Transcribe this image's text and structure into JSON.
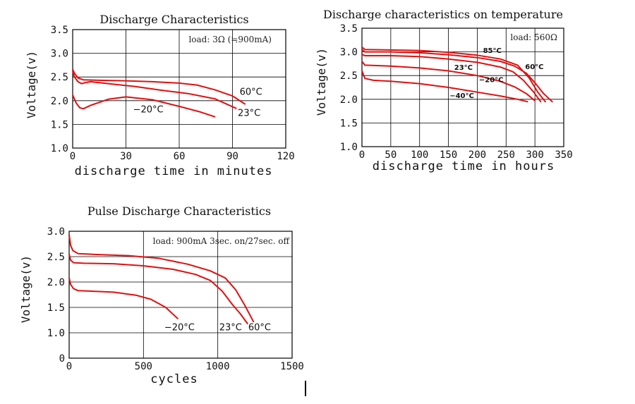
{
  "chart_data": [
    {
      "type": "line",
      "title": "Discharge Characteristics",
      "xlabel": "discharge time in minutes",
      "ylabel": "Voltage(v)",
      "xlim": [
        0,
        120
      ],
      "ylim": [
        1.0,
        3.5
      ],
      "xticks": [
        "0",
        "30",
        "60",
        "90",
        "120"
      ],
      "yticks": [
        "1.0",
        "1.5",
        "2.0",
        "2.5",
        "3.0",
        "3.5"
      ],
      "annotation": "load: 3Ω (≒900mA)",
      "grid": true,
      "series": [
        {
          "name": "60°C",
          "label_at": [
            94,
            2.12
          ],
          "points": [
            [
              0,
              2.66
            ],
            [
              1,
              2.58
            ],
            [
              3,
              2.48
            ],
            [
              6,
              2.44
            ],
            [
              15,
              2.43
            ],
            [
              30,
              2.42
            ],
            [
              45,
              2.4
            ],
            [
              60,
              2.37
            ],
            [
              70,
              2.33
            ],
            [
              80,
              2.23
            ],
            [
              90,
              2.1
            ],
            [
              97,
              1.93
            ]
          ]
        },
        {
          "name": "23°C",
          "label_at": [
            93,
            1.68
          ],
          "points": [
            [
              0,
              2.62
            ],
            [
              1,
              2.5
            ],
            [
              3,
              2.4
            ],
            [
              5,
              2.36
            ],
            [
              7,
              2.38
            ],
            [
              10,
              2.4
            ],
            [
              20,
              2.36
            ],
            [
              35,
              2.3
            ],
            [
              50,
              2.22
            ],
            [
              65,
              2.15
            ],
            [
              80,
              2.04
            ],
            [
              92,
              1.84
            ]
          ]
        },
        {
          "name": "−20°C",
          "label_at": [
            34,
            1.75
          ],
          "points": [
            [
              0,
              2.12
            ],
            [
              2,
              1.95
            ],
            [
              4,
              1.85
            ],
            [
              6,
              1.83
            ],
            [
              10,
              1.9
            ],
            [
              20,
              2.03
            ],
            [
              30,
              2.08
            ],
            [
              45,
              2.02
            ],
            [
              60,
              1.88
            ],
            [
              72,
              1.76
            ],
            [
              80,
              1.66
            ]
          ]
        }
      ]
    },
    {
      "type": "line",
      "title": "Discharge characteristics on temperature",
      "xlabel": "discharge time in hours",
      "ylabel": "Voltage(v)",
      "xlim": [
        0,
        350
      ],
      "ylim": [
        1.0,
        3.5
      ],
      "xticks": [
        "0",
        "50",
        "100",
        "150",
        "200",
        "250",
        "300",
        "350"
      ],
      "yticks": [
        "1.0",
        "1.5",
        "2.0",
        "2.5",
        "3.0",
        "3.5"
      ],
      "annotation": "load: 560Ω",
      "grid": true,
      "series": [
        {
          "name": "85°C",
          "label_at": [
            210,
            2.98
          ],
          "points": [
            [
              0,
              3.1
            ],
            [
              5,
              3.05
            ],
            [
              50,
              3.04
            ],
            [
              100,
              3.03
            ],
            [
              150,
              2.99
            ],
            [
              200,
              2.93
            ],
            [
              240,
              2.85
            ],
            [
              270,
              2.72
            ],
            [
              290,
              2.45
            ],
            [
              305,
              2.15
            ],
            [
              318,
              1.95
            ]
          ]
        },
        {
          "name": "60°C",
          "label_at": [
            283,
            2.64
          ],
          "points": [
            [
              0,
              3.05
            ],
            [
              5,
              3.0
            ],
            [
              50,
              3.0
            ],
            [
              100,
              2.98
            ],
            [
              150,
              2.94
            ],
            [
              200,
              2.88
            ],
            [
              240,
              2.8
            ],
            [
              265,
              2.7
            ],
            [
              285,
              2.55
            ],
            [
              300,
              2.35
            ],
            [
              315,
              2.12
            ],
            [
              330,
              1.95
            ]
          ]
        },
        {
          "name": "23°C",
          "label_at": [
            160,
            2.62
          ],
          "points": [
            [
              0,
              2.95
            ],
            [
              5,
              2.92
            ],
            [
              50,
              2.92
            ],
            [
              100,
              2.9
            ],
            [
              150,
              2.85
            ],
            [
              200,
              2.78
            ],
            [
              240,
              2.68
            ],
            [
              262,
              2.58
            ],
            [
              280,
              2.4
            ],
            [
              298,
              2.15
            ],
            [
              310,
              1.95
            ]
          ]
        },
        {
          "name": "−20°C",
          "label_at": [
            203,
            2.36
          ],
          "points": [
            [
              0,
              2.8
            ],
            [
              5,
              2.72
            ],
            [
              50,
              2.7
            ],
            [
              100,
              2.66
            ],
            [
              150,
              2.6
            ],
            [
              200,
              2.5
            ],
            [
              240,
              2.38
            ],
            [
              265,
              2.26
            ],
            [
              285,
              2.12
            ],
            [
              300,
              1.97
            ]
          ]
        },
        {
          "name": "−40°C",
          "label_at": [
            152,
            2.03
          ],
          "points": [
            [
              0,
              2.6
            ],
            [
              5,
              2.44
            ],
            [
              20,
              2.4
            ],
            [
              50,
              2.38
            ],
            [
              100,
              2.33
            ],
            [
              150,
              2.25
            ],
            [
              200,
              2.15
            ],
            [
              240,
              2.07
            ],
            [
              270,
              2.0
            ],
            [
              287,
              1.95
            ]
          ]
        }
      ]
    },
    {
      "type": "line",
      "title": "Pulse Discharge Characteristics",
      "xlabel": "cycles",
      "ylabel": "Voltage(v)",
      "xlim": [
        0,
        1500
      ],
      "ylim": [
        0,
        3.0
      ],
      "xticks": [
        "0",
        "500",
        "1000",
        "1500"
      ],
      "yticks": [
        "0",
        "1.0",
        "1.5",
        "2.0",
        "2.5",
        "3.0"
      ],
      "annotation": "load: 900mA 3sec. on/27sec. off",
      "grid": true,
      "series": [
        {
          "name": "60°C",
          "label_at": [
            1205,
            1.05
          ],
          "points": [
            [
              0,
              2.93
            ],
            [
              10,
              2.72
            ],
            [
              25,
              2.62
            ],
            [
              60,
              2.56
            ],
            [
              200,
              2.54
            ],
            [
              400,
              2.52
            ],
            [
              600,
              2.47
            ],
            [
              800,
              2.35
            ],
            [
              950,
              2.22
            ],
            [
              1050,
              2.08
            ],
            [
              1120,
              1.85
            ],
            [
              1180,
              1.55
            ],
            [
              1240,
              1.22
            ]
          ]
        },
        {
          "name": "23°C",
          "label_at": [
            1010,
            1.05
          ],
          "points": [
            [
              0,
              2.55
            ],
            [
              10,
              2.43
            ],
            [
              30,
              2.38
            ],
            [
              100,
              2.37
            ],
            [
              300,
              2.36
            ],
            [
              500,
              2.32
            ],
            [
              700,
              2.25
            ],
            [
              850,
              2.15
            ],
            [
              950,
              2.03
            ],
            [
              1030,
              1.82
            ],
            [
              1100,
              1.55
            ],
            [
              1150,
              1.38
            ],
            [
              1200,
              1.18
            ]
          ]
        },
        {
          "name": "−20°C",
          "label_at": [
            640,
            1.05
          ],
          "points": [
            [
              0,
              2.08
            ],
            [
              10,
              1.95
            ],
            [
              30,
              1.87
            ],
            [
              60,
              1.83
            ],
            [
              150,
              1.82
            ],
            [
              300,
              1.8
            ],
            [
              450,
              1.74
            ],
            [
              550,
              1.66
            ],
            [
              650,
              1.5
            ],
            [
              730,
              1.28
            ]
          ]
        }
      ]
    }
  ]
}
